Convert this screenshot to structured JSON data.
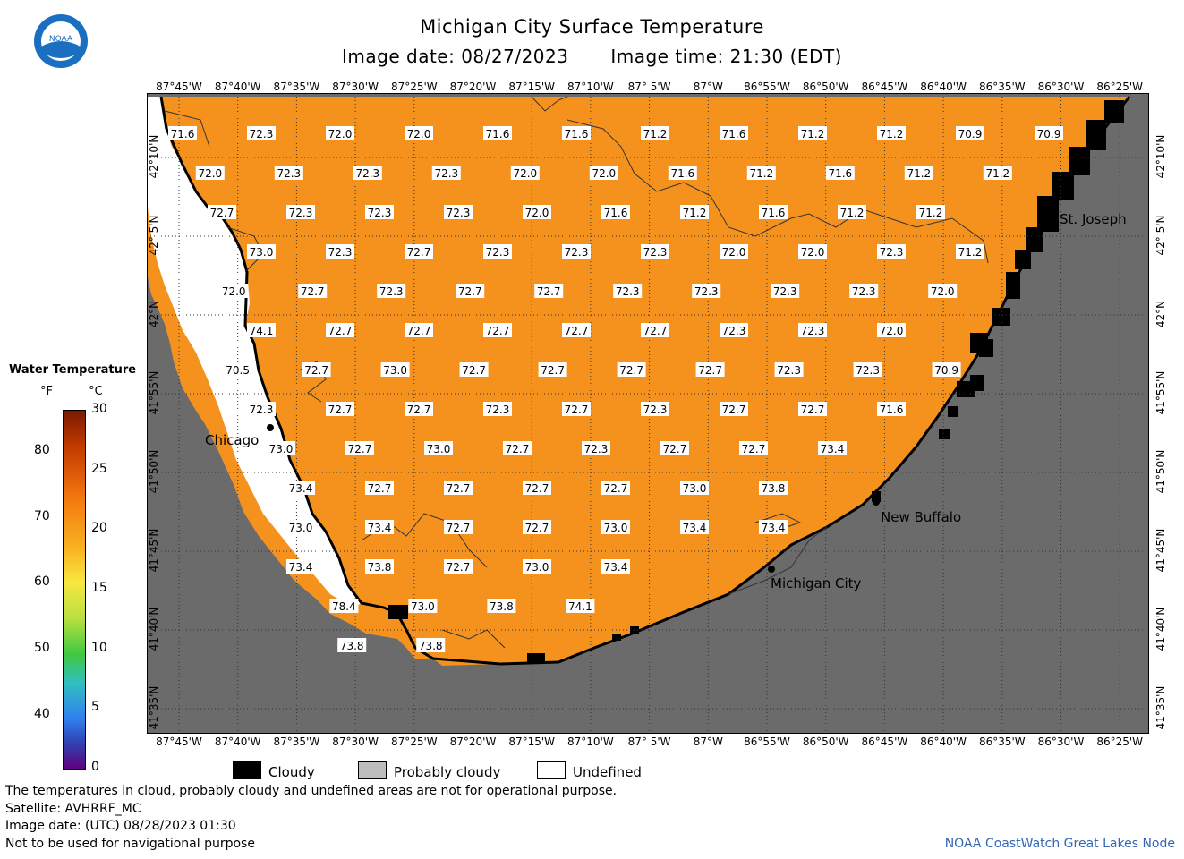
{
  "header": {
    "title": "Michigan City Surface Temperature",
    "image_date": "Image date: 08/27/2023",
    "image_time": "Image time: 21:30 (EDT)",
    "logo_text": "NOAA"
  },
  "map": {
    "lon_labels": [
      "87°45'W",
      "87°40'W",
      "87°35'W",
      "87°30'W",
      "87°25'W",
      "87°20'W",
      "87°15'W",
      "87°10'W",
      "87° 5'W",
      "87°W",
      "86°55'W",
      "86°50'W",
      "86°45'W",
      "86°40'W",
      "86°35'W",
      "86°30'W",
      "86°25'W"
    ],
    "lat_labels": [
      "42°10'N",
      "42° 5'N",
      "42°N",
      "41°55'N",
      "41°50'N",
      "41°45'N",
      "41°40'N",
      "41°35'N"
    ],
    "place_labels": [
      "Chicago",
      "Michigan City",
      "New Buffalo",
      "St. Joseph"
    ],
    "colors": {
      "land": "#6b6b6b",
      "water": "#f5921e",
      "water_dark": "#ec8414",
      "cloud": "#000000",
      "undefined": "#ffffff"
    },
    "temp_rows": [
      [
        "71.6",
        "72.3",
        "72.0",
        "72.0",
        "71.6",
        "71.6",
        "71.2",
        "71.6",
        "71.2",
        "71.2",
        "70.9",
        "70.9"
      ],
      [
        "72.0",
        "72.3",
        "72.3",
        "72.3",
        "72.0",
        "72.0",
        "71.6",
        "71.2",
        "71.6",
        "71.2",
        "71.2"
      ],
      [
        "72.7",
        "72.3",
        "72.3",
        "72.3",
        "72.0",
        "71.6",
        "71.2",
        "71.6",
        "71.2",
        "71.2"
      ],
      [
        "73.0",
        "72.3",
        "72.7",
        "72.3",
        "72.3",
        "72.3",
        "72.0",
        "72.0",
        "72.3",
        "71.2"
      ],
      [
        "72.0",
        "72.7",
        "72.3",
        "72.7",
        "72.7",
        "72.3",
        "72.3",
        "72.3",
        "72.3",
        "72.0"
      ],
      [
        "74.1",
        "72.7",
        "72.7",
        "72.7",
        "72.7",
        "72.7",
        "72.3",
        "72.3",
        "72.0"
      ],
      [
        "70.5",
        "72.7",
        "73.0",
        "72.7",
        "72.7",
        "72.7",
        "72.7",
        "72.3",
        "72.3",
        "70.9"
      ],
      [
        "72.3",
        "72.7",
        "72.7",
        "72.3",
        "72.7",
        "72.3",
        "72.7",
        "72.7",
        "71.6"
      ],
      [
        "73.0",
        "72.7",
        "73.0",
        "72.7",
        "72.3",
        "72.7",
        "72.7",
        "73.4"
      ],
      [
        "73.4",
        "72.7",
        "72.7",
        "72.7",
        "72.7",
        "73.0",
        "73.8"
      ],
      [
        "73.0",
        "73.4",
        "72.7",
        "72.7",
        "73.0",
        "73.4",
        "73.4"
      ],
      [
        "73.4",
        "73.8",
        "72.7",
        "73.0",
        "73.4"
      ],
      [
        "78.4",
        "73.0",
        "73.8",
        "74.1"
      ],
      [
        "73.8",
        "73.8"
      ]
    ]
  },
  "legend": {
    "title": "Water Temperature",
    "unit_f": "°F",
    "unit_c": "°C",
    "f_ticks": [
      "80",
      "70",
      "60",
      "50",
      "40"
    ],
    "c_ticks": [
      "30",
      "25",
      "20",
      "15",
      "10",
      "5",
      "0"
    ]
  },
  "key": {
    "cloudy": "Cloudy",
    "probably_cloudy": "Probably cloudy",
    "undefined": "Undefined"
  },
  "footer": {
    "line1": "The temperatures in cloud, probably cloudy and undefined areas are not for operational purpose.",
    "line2": "Satellite: AVHRRF_MC",
    "line3": "Image date: (UTC) 08/28/2023  01:30",
    "line4": "Not to be used for navigational purpose",
    "credit": "NOAA CoastWatch Great Lakes Node"
  }
}
